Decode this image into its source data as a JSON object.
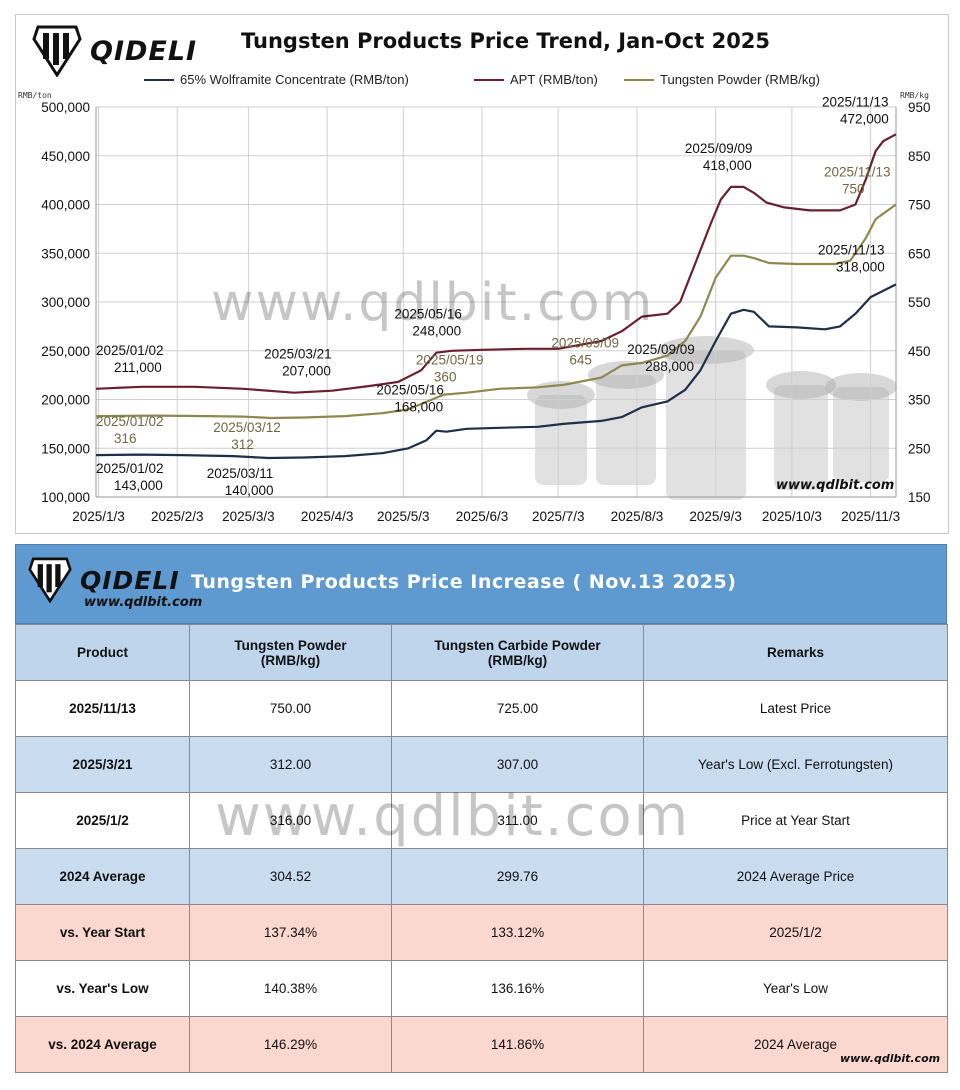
{
  "chart": {
    "brand": "QIDELI",
    "title": "Tungsten Products Price Trend, Jan-Oct 2025",
    "unit_left": "RMB/ton",
    "unit_right": "RMB/kg",
    "watermark": "www.qdlbit.com",
    "url": "www.qdlbit.com"
  },
  "chart_data": {
    "type": "line",
    "x_ticks": [
      "2025/1/3",
      "2025/2/3",
      "2025/3/3",
      "2025/4/3",
      "2025/5/3",
      "2025/6/3",
      "2025/7/3",
      "2025/8/3",
      "2025/9/3",
      "2025/10/3",
      "2025/11/3"
    ],
    "x_tick_dates": [
      "2025-01-03",
      "2025-02-03",
      "2025-03-03",
      "2025-04-03",
      "2025-05-03",
      "2025-06-03",
      "2025-07-03",
      "2025-08-03",
      "2025-09-03",
      "2025-10-03",
      "2025-11-03"
    ],
    "x_range": [
      "2025-01-02",
      "2025-11-13"
    ],
    "y_left": {
      "min": 100000,
      "max": 500000,
      "ticks": [
        "500,000",
        "450,000",
        "400,000",
        "350,000",
        "300,000",
        "250,000",
        "200,000",
        "150,000",
        "100,000"
      ]
    },
    "y_right": {
      "min": 150,
      "max": 950,
      "ticks": [
        "950",
        "850",
        "750",
        "650",
        "550",
        "450",
        "350",
        "250",
        "150"
      ]
    },
    "grid": true,
    "legend_position": "top",
    "series": [
      {
        "name": "65% Wolframite Concentrate (RMB/ton)",
        "axis": "left",
        "color": "#1e2f4a",
        "points": [
          [
            "2025-01-02",
            143000
          ],
          [
            "2025-01-20",
            143500
          ],
          [
            "2025-02-05",
            143000
          ],
          [
            "2025-02-25",
            142000
          ],
          [
            "2025-03-11",
            140000
          ],
          [
            "2025-03-25",
            140500
          ],
          [
            "2025-04-10",
            142000
          ],
          [
            "2025-04-25",
            145000
          ],
          [
            "2025-05-05",
            150000
          ],
          [
            "2025-05-12",
            158000
          ],
          [
            "2025-05-16",
            168000
          ],
          [
            "2025-05-20",
            167000
          ],
          [
            "2025-05-28",
            170000
          ],
          [
            "2025-06-10",
            171000
          ],
          [
            "2025-06-25",
            172000
          ],
          [
            "2025-07-05",
            175000
          ],
          [
            "2025-07-20",
            178000
          ],
          [
            "2025-07-28",
            182000
          ],
          [
            "2025-08-05",
            192000
          ],
          [
            "2025-08-15",
            198000
          ],
          [
            "2025-08-22",
            210000
          ],
          [
            "2025-08-28",
            230000
          ],
          [
            "2025-09-03",
            260000
          ],
          [
            "2025-09-09",
            288000
          ],
          [
            "2025-09-14",
            292000
          ],
          [
            "2025-09-18",
            290000
          ],
          [
            "2025-09-24",
            275000
          ],
          [
            "2025-10-05",
            274000
          ],
          [
            "2025-10-16",
            272000
          ],
          [
            "2025-10-22",
            275000
          ],
          [
            "2025-10-28",
            288000
          ],
          [
            "2025-11-03",
            305000
          ],
          [
            "2025-11-13",
            318000
          ]
        ]
      },
      {
        "name": "APT (RMB/ton)",
        "axis": "left",
        "color": "#6b2030",
        "points": [
          [
            "2025-01-02",
            211000
          ],
          [
            "2025-01-20",
            213000
          ],
          [
            "2025-02-10",
            213000
          ],
          [
            "2025-03-01",
            211000
          ],
          [
            "2025-03-21",
            207000
          ],
          [
            "2025-04-05",
            209000
          ],
          [
            "2025-04-20",
            214000
          ],
          [
            "2025-05-01",
            218000
          ],
          [
            "2025-05-10",
            230000
          ],
          [
            "2025-05-16",
            248000
          ],
          [
            "2025-05-22",
            250000
          ],
          [
            "2025-06-03",
            251000
          ],
          [
            "2025-06-20",
            252000
          ],
          [
            "2025-07-03",
            252000
          ],
          [
            "2025-07-20",
            260000
          ],
          [
            "2025-07-28",
            270000
          ],
          [
            "2025-08-05",
            285000
          ],
          [
            "2025-08-15",
            288000
          ],
          [
            "2025-08-20",
            300000
          ],
          [
            "2025-08-26",
            340000
          ],
          [
            "2025-09-01",
            380000
          ],
          [
            "2025-09-05",
            405000
          ],
          [
            "2025-09-09",
            418000
          ],
          [
            "2025-09-14",
            418000
          ],
          [
            "2025-09-18",
            412000
          ],
          [
            "2025-09-23",
            402000
          ],
          [
            "2025-09-30",
            397000
          ],
          [
            "2025-10-10",
            394000
          ],
          [
            "2025-10-22",
            394000
          ],
          [
            "2025-10-28",
            400000
          ],
          [
            "2025-11-01",
            425000
          ],
          [
            "2025-11-05",
            455000
          ],
          [
            "2025-11-08",
            465000
          ],
          [
            "2025-11-13",
            472000
          ]
        ]
      },
      {
        "name": "Tungsten Powder (RMB/kg)",
        "axis": "right",
        "color": "#8f8750",
        "points": [
          [
            "2025-01-02",
            316
          ],
          [
            "2025-01-25",
            317
          ],
          [
            "2025-02-15",
            316
          ],
          [
            "2025-03-01",
            315
          ],
          [
            "2025-03-12",
            312
          ],
          [
            "2025-03-25",
            313
          ],
          [
            "2025-04-10",
            316
          ],
          [
            "2025-04-25",
            322
          ],
          [
            "2025-05-05",
            330
          ],
          [
            "2025-05-12",
            345
          ],
          [
            "2025-05-19",
            360
          ],
          [
            "2025-05-28",
            364
          ],
          [
            "2025-06-10",
            372
          ],
          [
            "2025-06-25",
            375
          ],
          [
            "2025-07-05",
            380
          ],
          [
            "2025-07-20",
            395
          ],
          [
            "2025-07-28",
            420
          ],
          [
            "2025-08-05",
            425
          ],
          [
            "2025-08-15",
            440
          ],
          [
            "2025-08-22",
            470
          ],
          [
            "2025-08-28",
            520
          ],
          [
            "2025-09-03",
            600
          ],
          [
            "2025-09-09",
            645
          ],
          [
            "2025-09-14",
            645
          ],
          [
            "2025-09-18",
            640
          ],
          [
            "2025-09-24",
            630
          ],
          [
            "2025-10-05",
            628
          ],
          [
            "2025-10-20",
            628
          ],
          [
            "2025-10-26",
            635
          ],
          [
            "2025-11-01",
            680
          ],
          [
            "2025-11-05",
            720
          ],
          [
            "2025-11-13",
            750
          ]
        ]
      }
    ],
    "annotations": [
      {
        "date": "2025/01/02",
        "value": "211,000"
      },
      {
        "date": "2025/03/21",
        "value": "207,000"
      },
      {
        "date": "2025/05/16",
        "value": "248,000"
      },
      {
        "date": "2025/09/09",
        "value": "418,000"
      },
      {
        "date": "2025/11/13",
        "value": "472,000"
      },
      {
        "date": "2025/01/02",
        "value": "316"
      },
      {
        "date": "2025/03/12",
        "value": "312"
      },
      {
        "date": "2025/05/19",
        "value": "360"
      },
      {
        "date": "2025/09/09",
        "value": "645"
      },
      {
        "date": "2025/11/13",
        "value": "750"
      },
      {
        "date": "2025/01/02",
        "value": "143,000"
      },
      {
        "date": "2025/03/11",
        "value": "140,000"
      },
      {
        "date": "2025/05/16",
        "value": "168,000"
      },
      {
        "date": "2025/09/09",
        "value": "288,000"
      },
      {
        "date": "2025/11/13",
        "value": "318,000"
      }
    ]
  },
  "table": {
    "brand": "QIDELI",
    "url": "www.qdlbit.com",
    "title": "Tungsten Products Price Increase ( Nov.13 2025)",
    "watermark": "www.qdlbit.com",
    "headers": [
      "Product",
      "Tungsten Powder (RMB/kg)",
      "Tungsten Carbide Powder (RMB/kg)",
      "Remarks"
    ],
    "rows": [
      {
        "style": "white",
        "cells": [
          "2025/11/13",
          "750.00",
          "725.00",
          "Latest Price"
        ]
      },
      {
        "style": "blue",
        "cells": [
          "2025/3/21",
          "312.00",
          "307.00",
          "Year's Low (Excl. Ferrotungsten)"
        ]
      },
      {
        "style": "white",
        "cells": [
          "2025/1/2",
          "316.00",
          "311.00",
          "Price at Year Start"
        ]
      },
      {
        "style": "blue",
        "cells": [
          "2024 Average",
          "304.52",
          "299.76",
          "2024 Average Price"
        ]
      },
      {
        "style": "pink",
        "cells": [
          "vs. Year Start",
          "137.34%",
          "133.12%",
          "2025/1/2"
        ]
      },
      {
        "style": "white",
        "cells": [
          "vs. Year's Low",
          "140.38%",
          "136.16%",
          "Year's Low"
        ]
      },
      {
        "style": "pink",
        "cells": [
          "vs. 2024 Average",
          "146.29%",
          "141.86%",
          "2024 Average"
        ]
      }
    ]
  }
}
